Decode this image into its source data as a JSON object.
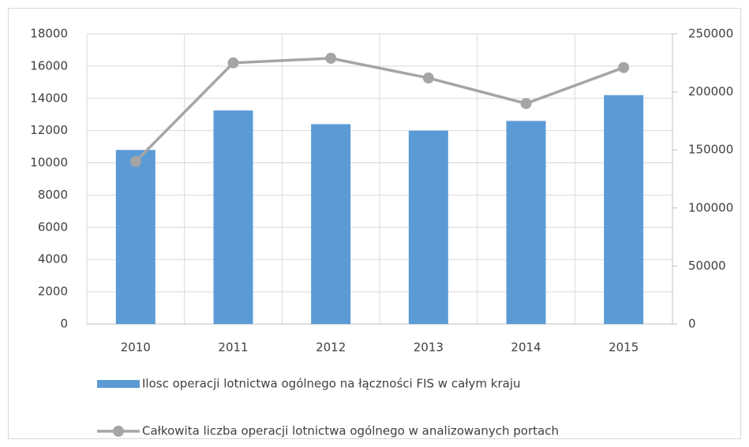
{
  "chart_data": {
    "type": "bar_line",
    "categories": [
      "2010",
      "2011",
      "2012",
      "2013",
      "2014",
      "2015"
    ],
    "series": [
      {
        "name": "Ilosc operacji lotnictwa ogólnego na łączności FIS w całym kraju",
        "color": "#5b9bd5",
        "type": "bar",
        "values": [
          10800,
          13250,
          12400,
          12000,
          12600,
          14200
        ]
      },
      {
        "name": "Całkowita liczba operacji lotnictwa ogólnego w analizowanych portach",
        "color": "#a5a5a5",
        "type": "line",
        "axis": "y2",
        "values": [
          140000,
          225000,
          229000,
          212000,
          190000,
          221000
        ]
      }
    ],
    "ylim": [
      0,
      18000
    ],
    "yticks": [
      0,
      2000,
      4000,
      6000,
      8000,
      10000,
      12000,
      14000,
      16000,
      18000
    ],
    "y2lim": [
      0,
      250000
    ],
    "y2ticks": [
      0,
      50000,
      100000,
      150000,
      200000,
      250000
    ],
    "grid": true,
    "legend": "bottom"
  }
}
